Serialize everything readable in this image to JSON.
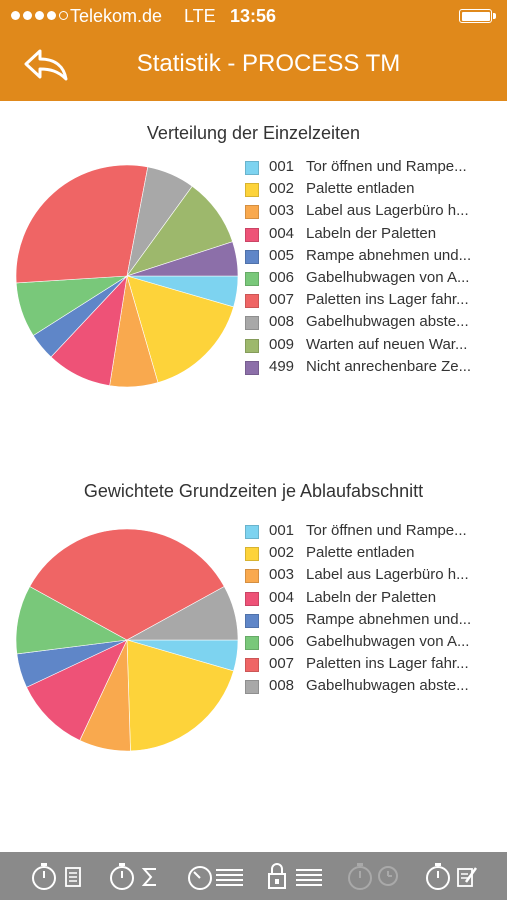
{
  "status_bar": {
    "carrier": "Telekom.de",
    "network": "LTE",
    "time": "13:56"
  },
  "header": {
    "title": "Statistik - PROCESS TM",
    "back_icon": "reply-arrow-icon"
  },
  "colors": {
    "header_bg": "#e0891b",
    "tabbar_bg": "#8a8a8a"
  },
  "chart_data": [
    {
      "type": "pie",
      "title": "Verteilung der Einzelzeiten",
      "slices": [
        {
          "code": "001",
          "label": "Tor öffnen und Rampe...",
          "value": 4.5,
          "color": "#7dd3f0"
        },
        {
          "code": "002",
          "label": "Palette entladen",
          "value": 16,
          "color": "#fdd33a"
        },
        {
          "code": "003",
          "label": "Label aus Lagerbüro h...",
          "value": 7,
          "color": "#f9a94e"
        },
        {
          "code": "004",
          "label": "Labeln der Paletten",
          "value": 9.5,
          "color": "#ee5277"
        },
        {
          "code": "005",
          "label": "Rampe abnehmen und...",
          "value": 4,
          "color": "#5f86c8"
        },
        {
          "code": "006",
          "label": "Gabelhubwagen von A...",
          "value": 8,
          "color": "#79c87a"
        },
        {
          "code": "007",
          "label": "Paletten ins Lager fahr...",
          "value": 29,
          "color": "#ef6565"
        },
        {
          "code": "008",
          "label": "Gabelhubwagen abste...",
          "value": 7,
          "color": "#a8a8a8"
        },
        {
          "code": "009",
          "label": "Warten auf neuen War...",
          "value": 10,
          "color": "#9db86c"
        },
        {
          "code": "499",
          "label": "Nicht anrechenbare Ze...",
          "value": 5,
          "color": "#8c6fa9"
        }
      ]
    },
    {
      "type": "pie",
      "title": "Gewichtete Grundzeiten je Ablaufabschnitt",
      "slices": [
        {
          "code": "001",
          "label": "Tor öffnen und Rampe...",
          "value": 4.5,
          "color": "#7dd3f0"
        },
        {
          "code": "002",
          "label": "Palette entladen",
          "value": 20,
          "color": "#fdd33a"
        },
        {
          "code": "003",
          "label": "Label aus Lagerbüro h...",
          "value": 7.5,
          "color": "#f9a94e"
        },
        {
          "code": "004",
          "label": "Labeln der Paletten",
          "value": 11,
          "color": "#ee5277"
        },
        {
          "code": "005",
          "label": "Rampe abnehmen und...",
          "value": 5,
          "color": "#5f86c8"
        },
        {
          "code": "006",
          "label": "Gabelhubwagen von A...",
          "value": 10,
          "color": "#79c87a"
        },
        {
          "code": "007",
          "label": "Paletten ins Lager fahr...",
          "value": 34,
          "color": "#ef6565"
        },
        {
          "code": "008",
          "label": "Gabelhubwagen abste...",
          "value": 8,
          "color": "#a8a8a8"
        }
      ]
    }
  ],
  "tabbar": {
    "tabs": [
      {
        "name": "stopwatch-document-icon",
        "active": true
      },
      {
        "name": "stopwatch-sum-icon",
        "active": true
      },
      {
        "name": "timer-list-icon",
        "active": true
      },
      {
        "name": "lock-list-icon",
        "active": true
      },
      {
        "name": "stopwatch-clock-icon",
        "active": false
      },
      {
        "name": "stopwatch-edit-icon",
        "active": true
      }
    ]
  }
}
